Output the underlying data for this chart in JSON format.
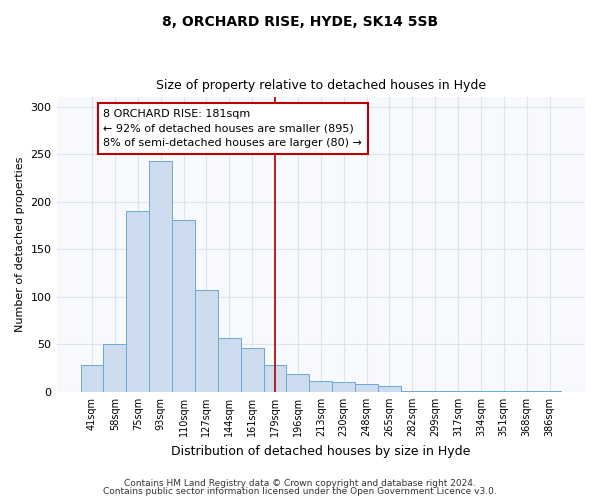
{
  "title": "8, ORCHARD RISE, HYDE, SK14 5SB",
  "subtitle": "Size of property relative to detached houses in Hyde",
  "xlabel": "Distribution of detached houses by size in Hyde",
  "ylabel": "Number of detached properties",
  "bar_labels": [
    "41sqm",
    "58sqm",
    "75sqm",
    "93sqm",
    "110sqm",
    "127sqm",
    "144sqm",
    "161sqm",
    "179sqm",
    "196sqm",
    "213sqm",
    "230sqm",
    "248sqm",
    "265sqm",
    "282sqm",
    "299sqm",
    "317sqm",
    "334sqm",
    "351sqm",
    "368sqm",
    "386sqm"
  ],
  "bar_values": [
    28,
    50,
    190,
    243,
    181,
    107,
    57,
    46,
    28,
    19,
    12,
    10,
    8,
    6,
    1,
    1,
    1,
    1,
    1,
    1,
    1
  ],
  "bar_color": "#ccdcee",
  "bar_edge_color": "#6aaad4",
  "vline_x_idx": 8,
  "vline_color": "#aa0000",
  "annotation_title": "8 ORCHARD RISE: 181sqm",
  "annotation_line1": "← 92% of detached houses are smaller (895)",
  "annotation_line2": "8% of semi-detached houses are larger (80) →",
  "annotation_box_edgecolor": "#bb0000",
  "ylim": [
    0,
    310
  ],
  "yticks": [
    0,
    50,
    100,
    150,
    200,
    250,
    300
  ],
  "footer1": "Contains HM Land Registry data © Crown copyright and database right 2024.",
  "footer2": "Contains public sector information licensed under the Open Government Licence v3.0.",
  "plot_bg_color": "#f7f9fd",
  "fig_bg_color": "#ffffff",
  "grid_color": "#dde4ee",
  "title_fontsize": 10,
  "subtitle_fontsize": 9,
  "ylabel_fontsize": 8,
  "xlabel_fontsize": 9,
  "tick_fontsize": 7,
  "annotation_fontsize": 8,
  "footer_fontsize": 6.5
}
